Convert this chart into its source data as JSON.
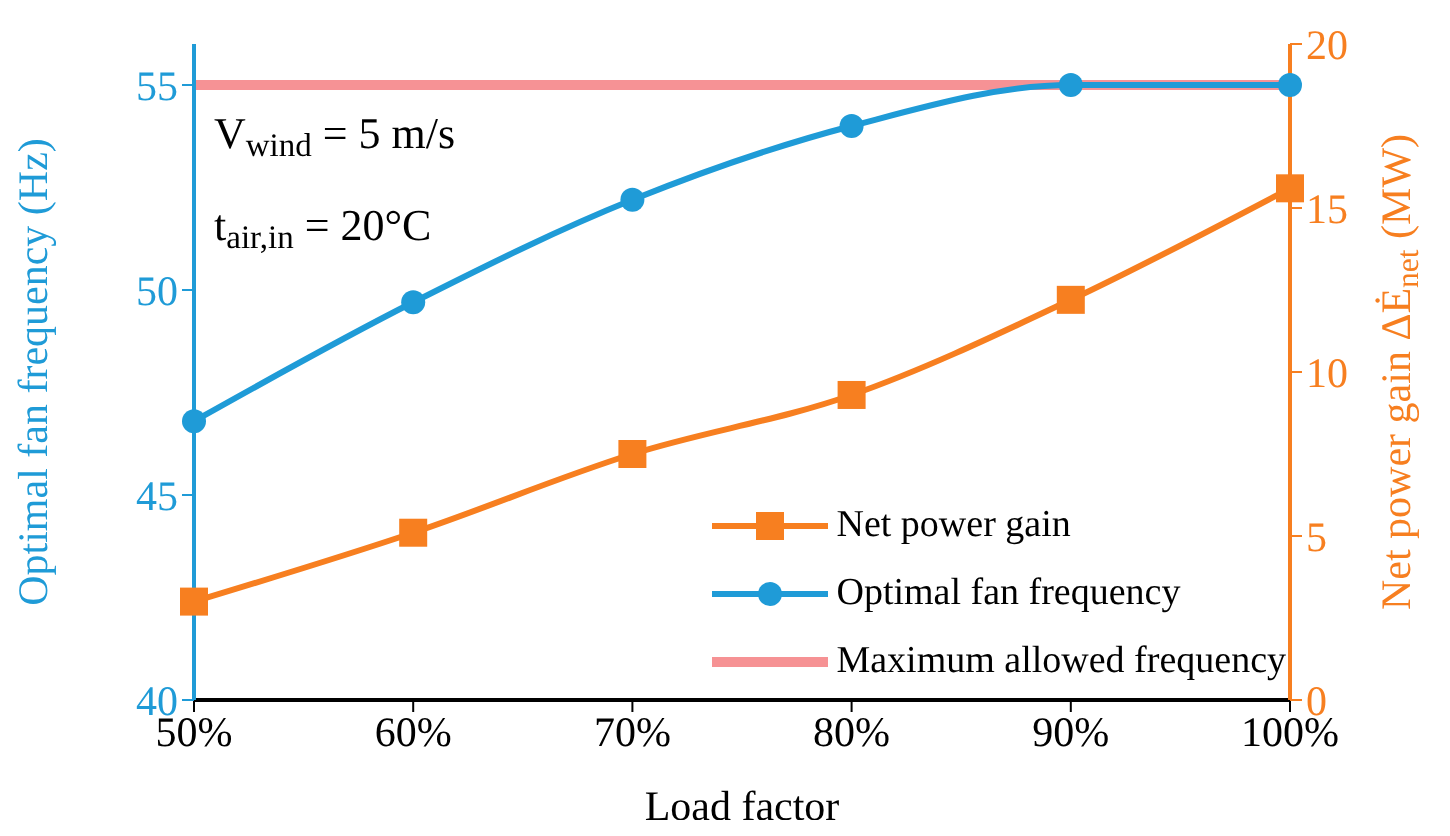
{
  "chart_data": {
    "type": "line",
    "xlabel": "Load factor",
    "ylabel": "Optimal fan frequency (Hz)",
    "y2label": "Net power gain  ΔĖ$_{net}$ (MW)",
    "categories": [
      "50%",
      "60%",
      "70%",
      "80%",
      "90%",
      "100%"
    ],
    "series": [
      {
        "name": "Net power gain",
        "color": "#f77f20",
        "axis": "y2",
        "marker": "square",
        "values": [
          3.0,
          5.1,
          7.5,
          9.3,
          12.2,
          15.6
        ]
      },
      {
        "name": "Optimal fan frequency",
        "color": "#1f9bd7",
        "marker": "circle",
        "values": [
          46.8,
          49.7,
          52.2,
          54.0,
          55.0,
          55.0
        ]
      },
      {
        "name": "Maximum allowed frequency",
        "color": "#f4777a",
        "marker": "none",
        "values": [
          55,
          55,
          55,
          55,
          55,
          55
        ]
      }
    ],
    "ylim": [
      40,
      56
    ],
    "yticks": [
      40,
      45,
      50,
      55
    ],
    "y2lim": [
      0,
      20
    ],
    "y2ticks": [
      0,
      5,
      10,
      15,
      20
    ],
    "annotations": [
      "V$_{wind}$ = 5 m/s",
      "t$_{air,in}$ = 20°C"
    ],
    "legend": "bottom right",
    "grid": false
  }
}
